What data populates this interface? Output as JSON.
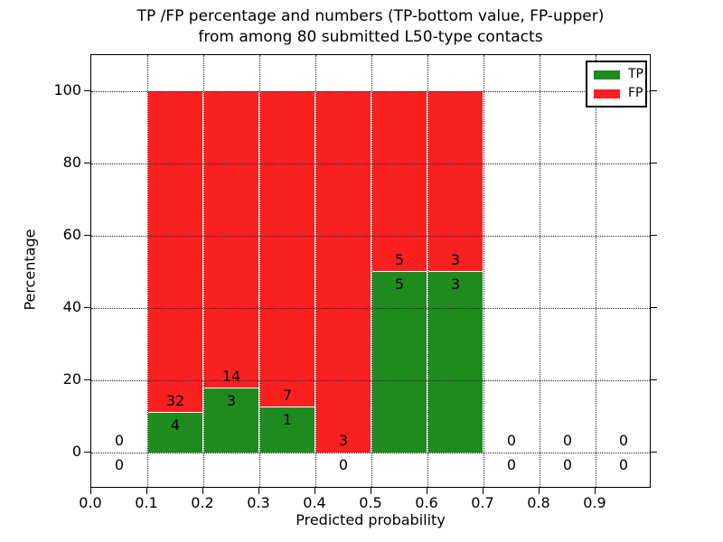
{
  "figure": {
    "title_line1": "TP /FP percentage and numbers (TP-bottom value, FP-upper)",
    "title_line2": "from among 80 submitted L50-type contacts"
  },
  "chart_data": {
    "type": "bar",
    "stacked": true,
    "title": "TP /FP percentage and numbers (TP-bottom value, FP-upper) from among 80 submitted L50-type contacts",
    "xlabel": "Predicted probability",
    "ylabel": "Percentage",
    "xlim": [
      0.0,
      1.0
    ],
    "ylim": [
      -10,
      110
    ],
    "grid": "dotted",
    "x_tick_values": [
      0.0,
      0.1,
      0.2,
      0.3,
      0.4,
      0.5,
      0.6,
      0.7,
      0.8,
      0.9
    ],
    "x_tick_labels": [
      "0.0",
      "0.1",
      "0.2",
      "0.3",
      "0.4",
      "0.5",
      "0.6",
      "0.7",
      "0.8",
      "0.9"
    ],
    "y_tick_values": [
      0,
      20,
      40,
      60,
      80,
      100
    ],
    "y_tick_labels": [
      "0",
      "20",
      "40",
      "60",
      "80",
      "100"
    ],
    "legend": {
      "position": "upper right",
      "entries": [
        {
          "label": "TP",
          "color": "#1f8b1f"
        },
        {
          "label": "FP",
          "color": "#fb2020"
        }
      ]
    },
    "bins": [
      {
        "x0": 0.0,
        "x1": 0.1,
        "tp_count": 0,
        "fp_count": 0,
        "tp_pct": 0,
        "fp_pct": 0
      },
      {
        "x0": 0.1,
        "x1": 0.2,
        "tp_count": 4,
        "fp_count": 32,
        "tp_pct": 11.11,
        "fp_pct": 88.89
      },
      {
        "x0": 0.2,
        "x1": 0.3,
        "tp_count": 3,
        "fp_count": 14,
        "tp_pct": 17.65,
        "fp_pct": 82.35
      },
      {
        "x0": 0.3,
        "x1": 0.4,
        "tp_count": 1,
        "fp_count": 7,
        "tp_pct": 12.5,
        "fp_pct": 87.5
      },
      {
        "x0": 0.4,
        "x1": 0.5,
        "tp_count": 0,
        "fp_count": 3,
        "tp_pct": 0,
        "fp_pct": 100
      },
      {
        "x0": 0.5,
        "x1": 0.6,
        "tp_count": 5,
        "fp_count": 5,
        "tp_pct": 50,
        "fp_pct": 50
      },
      {
        "x0": 0.6,
        "x1": 0.7,
        "tp_count": 3,
        "fp_count": 3,
        "tp_pct": 50,
        "fp_pct": 50
      },
      {
        "x0": 0.7,
        "x1": 0.8,
        "tp_count": 0,
        "fp_count": 0,
        "tp_pct": 0,
        "fp_pct": 0
      },
      {
        "x0": 0.8,
        "x1": 0.9,
        "tp_count": 0,
        "fp_count": 0,
        "tp_pct": 0,
        "fp_pct": 0
      },
      {
        "x0": 0.9,
        "x1": 1.0,
        "tp_count": 0,
        "fp_count": 0,
        "tp_pct": 0,
        "fp_pct": 0
      }
    ]
  },
  "colors": {
    "tp": "#1f8b1f",
    "fp": "#fb2020",
    "grid": "#222222",
    "text": "#000000",
    "background": "#ffffff"
  }
}
